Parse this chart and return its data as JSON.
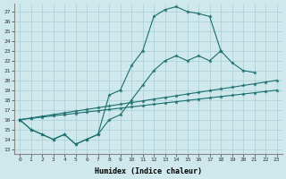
{
  "background_color": "#cee8ec",
  "grid_color": "#aacdd4",
  "line_color": "#1a6e6e",
  "xlim": [
    -0.5,
    23.5
  ],
  "ylim": [
    12.5,
    27.8
  ],
  "yticks": [
    13,
    14,
    15,
    16,
    17,
    18,
    19,
    20,
    21,
    22,
    23,
    24,
    25,
    26,
    27
  ],
  "xticks": [
    0,
    1,
    2,
    3,
    4,
    5,
    6,
    7,
    8,
    9,
    10,
    11,
    12,
    13,
    14,
    15,
    16,
    17,
    18,
    19,
    20,
    21,
    22,
    23
  ],
  "xlabel": "Humidex (Indice chaleur)",
  "line1_x": [
    0,
    1,
    2,
    3,
    4,
    5,
    6,
    7,
    8,
    9,
    10,
    11,
    12,
    13,
    14,
    15,
    16,
    17,
    18
  ],
  "line1_y": [
    16.0,
    15.0,
    14.5,
    14.0,
    14.5,
    13.5,
    14.0,
    14.5,
    18.5,
    19.0,
    21.5,
    23.0,
    26.5,
    27.2,
    27.5,
    27.0,
    26.8,
    26.5,
    23.0
  ],
  "line2_x": [
    0,
    1,
    2,
    3,
    4,
    5,
    6,
    7,
    8,
    9,
    10,
    11,
    12,
    13,
    14,
    15,
    16,
    17,
    18,
    19,
    20,
    21
  ],
  "line2_y": [
    16.0,
    15.0,
    14.5,
    14.0,
    14.5,
    13.5,
    14.0,
    14.5,
    16.0,
    16.5,
    18.0,
    19.5,
    21.0,
    22.0,
    22.5,
    22.0,
    22.5,
    22.0,
    23.0,
    21.8,
    21.0,
    20.8
  ],
  "line3_x": [
    0,
    1,
    2,
    3,
    4,
    5,
    6,
    7,
    8,
    9,
    10,
    11,
    12,
    13,
    14,
    15,
    16,
    17,
    18,
    19,
    20,
    21,
    22,
    23
  ],
  "line3_y": [
    16.0,
    16.17,
    16.35,
    16.52,
    16.7,
    16.87,
    17.04,
    17.22,
    17.39,
    17.57,
    17.74,
    17.91,
    18.09,
    18.26,
    18.43,
    18.61,
    18.78,
    18.96,
    19.13,
    19.3,
    19.48,
    19.65,
    19.83,
    20.0
  ],
  "line4_x": [
    0,
    1,
    2,
    3,
    4,
    5,
    6,
    7,
    8,
    9,
    10,
    11,
    12,
    13,
    14,
    15,
    16,
    17,
    18,
    19,
    20,
    21,
    22,
    23
  ],
  "line4_y": [
    16.0,
    16.13,
    16.26,
    16.39,
    16.52,
    16.65,
    16.78,
    16.91,
    17.04,
    17.17,
    17.3,
    17.43,
    17.57,
    17.7,
    17.83,
    17.96,
    18.09,
    18.22,
    18.35,
    18.48,
    18.61,
    18.74,
    18.87,
    19.0
  ]
}
